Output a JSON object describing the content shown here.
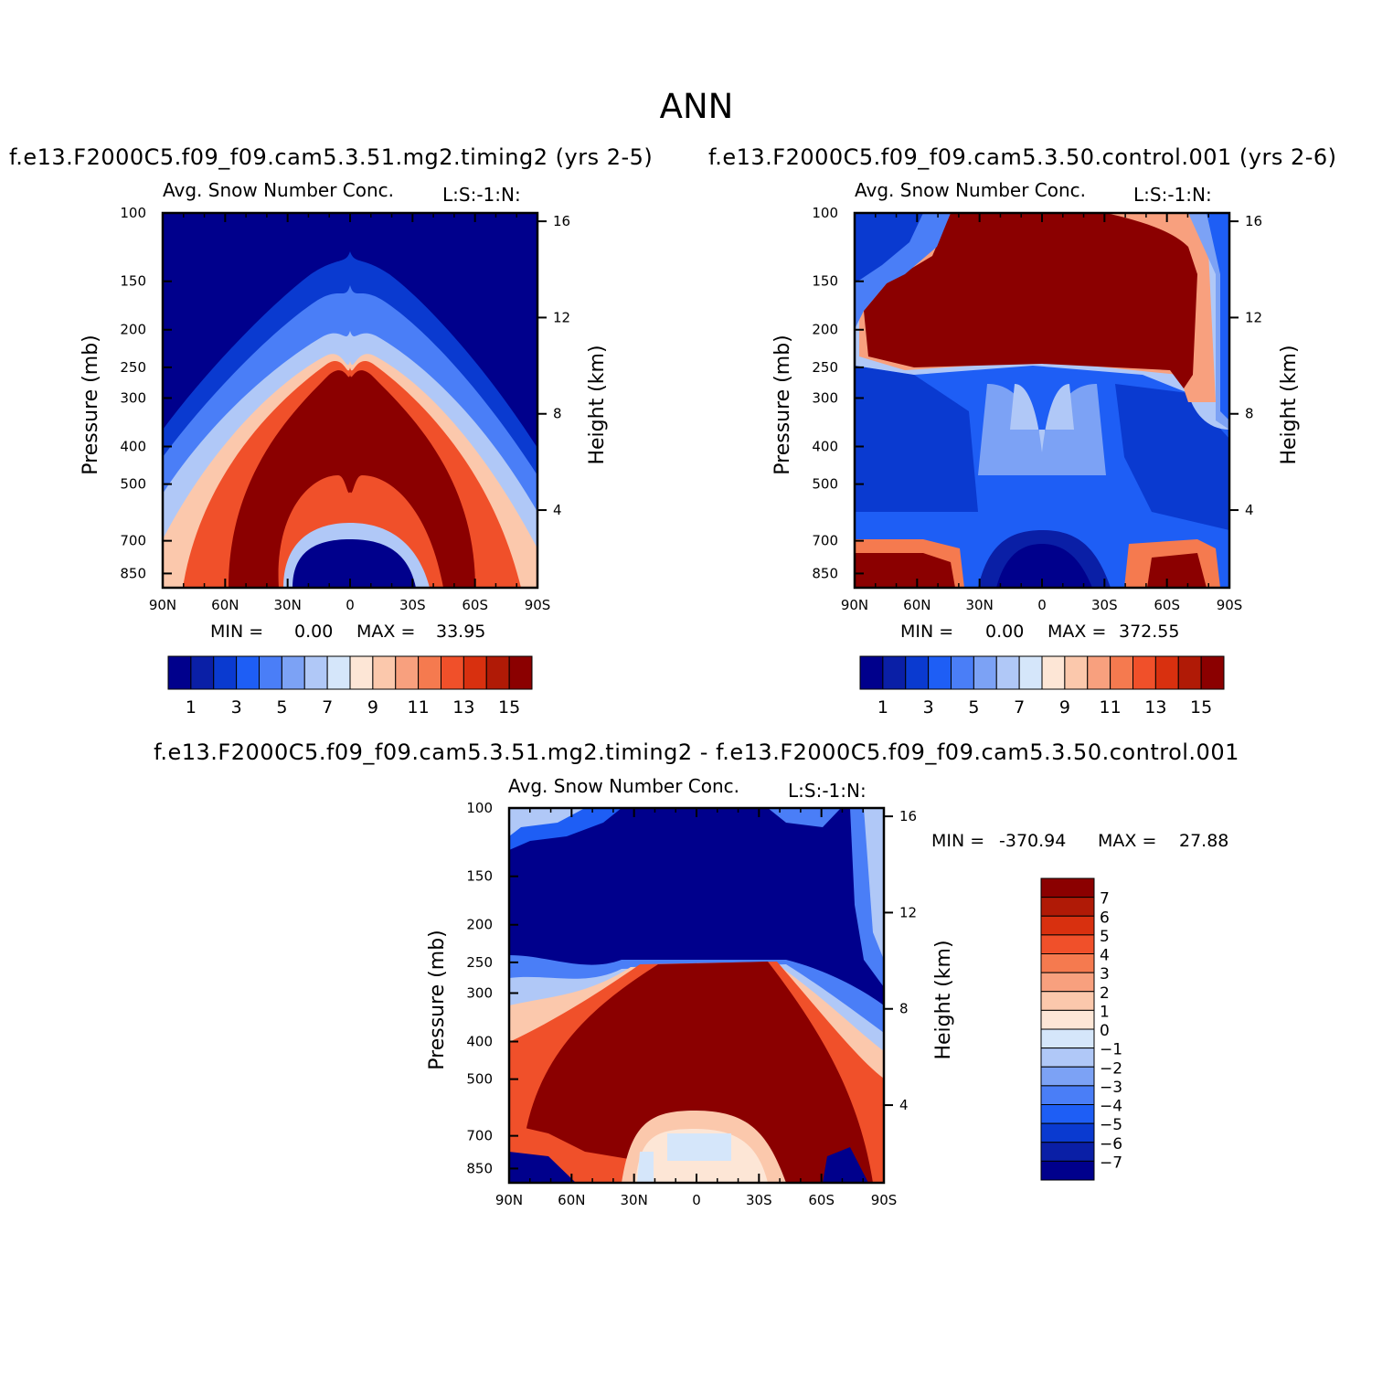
{
  "figure": {
    "season": "ANN"
  },
  "colors": {
    "positive_palette": [
      "#00008c",
      "#0a1fa6",
      "#0a3ad0",
      "#1e5ef5",
      "#4a7ef7",
      "#7ca2f5",
      "#b0c8f7",
      "#d5e6fa",
      "#fde6d6",
      "#fbc8ac",
      "#f8a07e",
      "#f57a4f",
      "#f0502a",
      "#d8300f",
      "#b01a06",
      "#8b0000"
    ],
    "diff_palette": [
      "#00008c",
      "#0a1fa6",
      "#0a3ad0",
      "#1e5ef5",
      "#4a7ef7",
      "#7ca2f5",
      "#b0c8f7",
      "#d5e6fa",
      "#fde6d6",
      "#fbc8ac",
      "#f8a07e",
      "#f57a4f",
      "#f0502a",
      "#d8300f",
      "#b01a06",
      "#8b0000"
    ]
  },
  "panels": {
    "p1": {
      "case_label": "f.e13.F2000C5.f09_f09.cam5.3.51.mg2.timing2 (yrs 2-5)",
      "variable": "Avg. Snow Number Conc.",
      "units": "L:S:-1:N:",
      "min_label": "MIN =",
      "min_value": "0.00",
      "max_label": "MAX =",
      "max_value": "33.95"
    },
    "p2": {
      "case_label": "f.e13.F2000C5.f09_f09.cam5.3.50.control.001 (yrs 2-6)",
      "variable": "Avg. Snow Number Conc.",
      "units": "L:S:-1:N:",
      "min_label": "MIN =",
      "min_value": "0.00",
      "max_label": "MAX =",
      "max_value": "372.55"
    },
    "p3": {
      "case_label": "f.e13.F2000C5.f09_f09.cam5.3.51.mg2.timing2 - f.e13.F2000C5.f09_f09.cam5.3.50.control.001",
      "variable": "Avg. Snow Number Conc.",
      "units": "L:S:-1:N:",
      "min_label": "MIN =",
      "min_value": "-370.94",
      "max_label": "MAX =",
      "max_value": "27.88"
    }
  },
  "chart_data": [
    {
      "type": "heatmap",
      "title": "Avg. Snow Number Conc.",
      "units": "L:S:-1:N:",
      "xlabel": "",
      "ylabel": "Pressure (mb)",
      "ylabel_right": "Height (km)",
      "x_ticks": [
        "90N",
        "60N",
        "30N",
        "0",
        "30S",
        "60S",
        "90S"
      ],
      "y_ticks": [
        100,
        150,
        200,
        250,
        300,
        400,
        500,
        700,
        850
      ],
      "y_ticks_right": [
        16,
        12,
        8,
        4
      ],
      "ylim": [
        100,
        1000
      ],
      "xlim": [
        90,
        -90
      ],
      "colorbar_labels": [
        1,
        3,
        5,
        7,
        9,
        11,
        13,
        15
      ],
      "colorbar_levels": 16,
      "min": 0.0,
      "max": 33.95
    },
    {
      "type": "heatmap",
      "title": "Avg. Snow Number Conc.",
      "units": "L:S:-1:N:",
      "xlabel": "",
      "ylabel": "Pressure (mb)",
      "ylabel_right": "Height (km)",
      "x_ticks": [
        "90N",
        "60N",
        "30N",
        "0",
        "30S",
        "60S",
        "90S"
      ],
      "y_ticks": [
        100,
        150,
        200,
        250,
        300,
        400,
        500,
        700,
        850
      ],
      "y_ticks_right": [
        16,
        12,
        8,
        4
      ],
      "ylim": [
        100,
        1000
      ],
      "xlim": [
        90,
        -90
      ],
      "colorbar_labels": [
        1,
        3,
        5,
        7,
        9,
        11,
        13,
        15
      ],
      "colorbar_levels": 16,
      "min": 0.0,
      "max": 372.55
    },
    {
      "type": "heatmap",
      "title": "Avg. Snow Number Conc.",
      "units": "L:S:-1:N:",
      "xlabel": "",
      "ylabel": "Pressure (mb)",
      "ylabel_right": "Height (km)",
      "x_ticks": [
        "90N",
        "60N",
        "30N",
        "0",
        "30S",
        "60S",
        "90S"
      ],
      "y_ticks": [
        100,
        150,
        200,
        250,
        300,
        400,
        500,
        700,
        850
      ],
      "y_ticks_right": [
        16,
        12,
        8,
        4
      ],
      "ylim": [
        100,
        1000
      ],
      "xlim": [
        90,
        -90
      ],
      "colorbar_labels": [
        7,
        6,
        5,
        4,
        3,
        2,
        1,
        0,
        -1,
        -2,
        -3,
        -4,
        -5,
        -6,
        -7
      ],
      "colorbar_levels": 16,
      "min": -370.94,
      "max": 27.88
    }
  ]
}
